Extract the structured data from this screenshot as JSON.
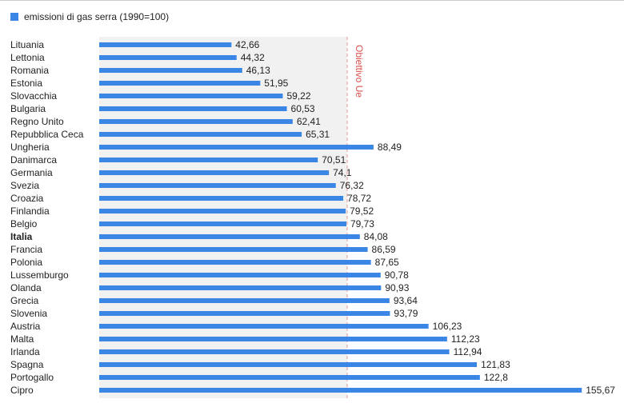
{
  "chart_data": {
    "type": "hbar",
    "legend": "emissioni di gas serra (1990=100)",
    "series": [
      {
        "name": "emissioni di gas serra (1990=100)",
        "color": "#3a86e6",
        "values": [
          42.66,
          44.32,
          46.13,
          51.95,
          59.22,
          60.53,
          62.41,
          65.31,
          88.49,
          70.51,
          74.1,
          76.32,
          78.72,
          79.52,
          79.73,
          84.08,
          86.59,
          87.65,
          90.78,
          90.93,
          93.64,
          93.79,
          106.23,
          112.23,
          112.94,
          121.83,
          122.8,
          155.67
        ],
        "value_labels": [
          "42,66",
          "44,32",
          "46,13",
          "51,95",
          "59,22",
          "60,53",
          "62,41",
          "65,31",
          "88,49",
          "70,51",
          "74,1",
          "76,32",
          "78,72",
          "79,52",
          "79,73",
          "84,08",
          "86,59",
          "87,65",
          "90,78",
          "90,93",
          "93,64",
          "93,79",
          "106,23",
          "112,23",
          "112,94",
          "121,83",
          "122,8",
          "155,67"
        ]
      }
    ],
    "categories": [
      "Lituania",
      "Lettonia",
      "Romania",
      "Estonia",
      "Slovacchia",
      "Bulgaria",
      "Regno Unito",
      "Repubblica Ceca",
      "Ungheria",
      "Danimarca",
      "Germania",
      "Svezia",
      "Croazia",
      "Finlandia",
      "Belgio",
      "Italia",
      "Francia",
      "Polonia",
      "Lussemburgo",
      "Olanda",
      "Grecia",
      "Slovenia",
      "Austria",
      "Malta",
      "Irlanda",
      "Spagna",
      "Portogallo",
      "Cipro"
    ],
    "bold_category_index": 15,
    "xlim": [
      0,
      160
    ],
    "reference_line": {
      "value": 80,
      "label": "Obiettivo Ue",
      "color": "#d9534f"
    }
  }
}
